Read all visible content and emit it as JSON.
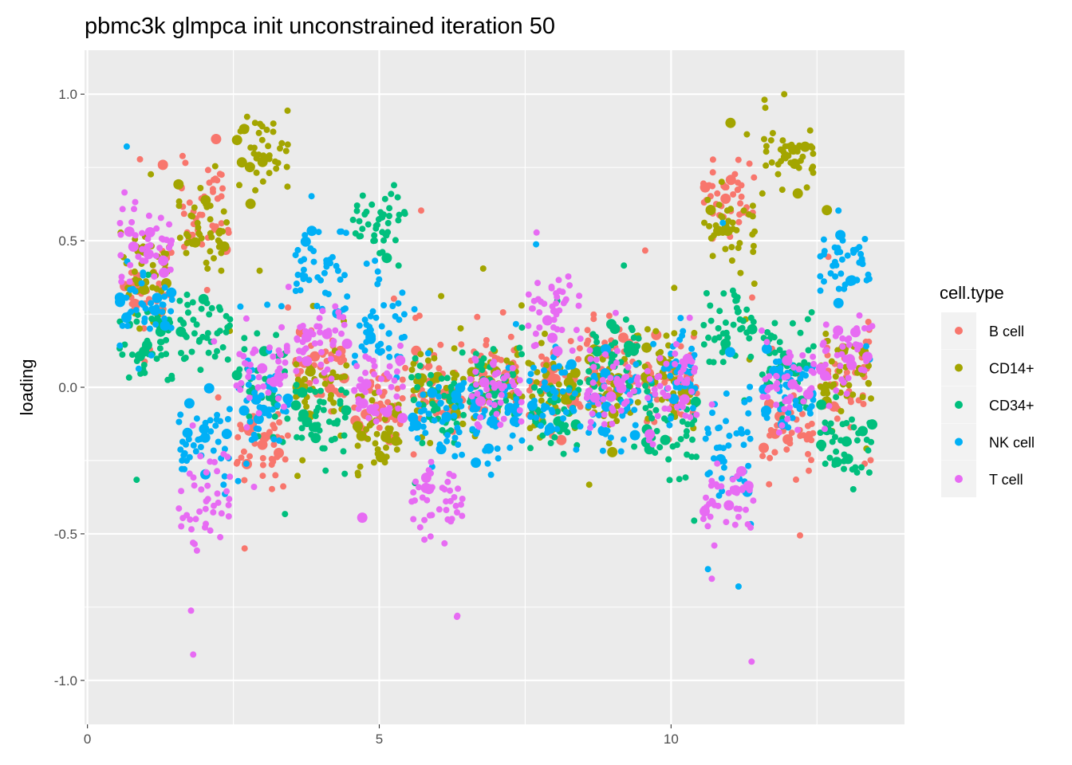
{
  "chart_data": {
    "type": "scatter",
    "title": "pbmc3k glmpca init unconstrained iteration 50",
    "xlabel": "",
    "ylabel": "loading",
    "xlim": [
      -0.05,
      14.0
    ],
    "ylim": [
      -1.15,
      1.15
    ],
    "x_ticks": [
      0,
      5,
      10
    ],
    "x_tick_labels": [
      "0",
      "5",
      "10"
    ],
    "y_ticks": [
      -1.0,
      -0.5,
      0.0,
      0.5,
      1.0
    ],
    "y_tick_labels": [
      "-1.0",
      "-0.5",
      "0.0",
      "0.5",
      "1.0"
    ],
    "grid": true,
    "legend": {
      "title": "cell.type",
      "position": "right",
      "entries": [
        {
          "name": "B cell",
          "color": "#F8766D"
        },
        {
          "name": "CD14+",
          "color": "#A3A500"
        },
        {
          "name": "CD34+",
          "color": "#00BF7D"
        },
        {
          "name": "NK cell",
          "color": "#00B0F6"
        },
        {
          "name": "T cell",
          "color": "#E76BF3"
        }
      ]
    },
    "colors": {
      "panel_background": "#EBEBEB",
      "grid": "#FFFFFF",
      "tick_text": "#4D4D4D"
    },
    "jitter_width": 0.45,
    "series": [
      {
        "name": "B cell",
        "values": [
          {
            "x": 1,
            "y": 0.35
          },
          {
            "x": 2,
            "y": 0.6
          },
          {
            "x": 3,
            "y": -0.2
          },
          {
            "x": 4,
            "y": 0.05
          },
          {
            "x": 5,
            "y": -0.05
          },
          {
            "x": 6,
            "y": 0.0
          },
          {
            "x": 7,
            "y": 0.05
          },
          {
            "x": 8,
            "y": 0.0
          },
          {
            "x": 9,
            "y": 0.1
          },
          {
            "x": 10,
            "y": 0.0
          },
          {
            "x": 11,
            "y": 0.65
          },
          {
            "x": 12,
            "y": -0.15
          },
          {
            "x": 13,
            "y": 0.05
          }
        ]
      },
      {
        "name": "CD14+",
        "values": [
          {
            "x": 1,
            "y": 0.4
          },
          {
            "x": 2,
            "y": 0.55
          },
          {
            "x": 3,
            "y": 0.8
          },
          {
            "x": 4,
            "y": 0.0
          },
          {
            "x": 5,
            "y": -0.15
          },
          {
            "x": 6,
            "y": 0.0
          },
          {
            "x": 7,
            "y": 0.0
          },
          {
            "x": 8,
            "y": 0.0
          },
          {
            "x": 9,
            "y": 0.0
          },
          {
            "x": 10,
            "y": 0.05
          },
          {
            "x": 11,
            "y": 0.55
          },
          {
            "x": 12,
            "y": 0.8
          },
          {
            "x": 13,
            "y": 0.0
          }
        ]
      },
      {
        "name": "CD34+",
        "values": [
          {
            "x": 1,
            "y": 0.15
          },
          {
            "x": 2,
            "y": 0.2
          },
          {
            "x": 3,
            "y": 0.0
          },
          {
            "x": 4,
            "y": -0.1
          },
          {
            "x": 5,
            "y": 0.55
          },
          {
            "x": 6,
            "y": -0.05
          },
          {
            "x": 7,
            "y": 0.0
          },
          {
            "x": 8,
            "y": -0.1
          },
          {
            "x": 9,
            "y": 0.1
          },
          {
            "x": 10,
            "y": -0.15
          },
          {
            "x": 11,
            "y": 0.2
          },
          {
            "x": 12,
            "y": 0.1
          },
          {
            "x": 13,
            "y": -0.2
          }
        ]
      },
      {
        "name": "NK cell",
        "values": [
          {
            "x": 1,
            "y": 0.25
          },
          {
            "x": 2,
            "y": -0.2
          },
          {
            "x": 3,
            "y": -0.05
          },
          {
            "x": 4,
            "y": 0.4
          },
          {
            "x": 5,
            "y": 0.2
          },
          {
            "x": 6,
            "y": -0.1
          },
          {
            "x": 7,
            "y": -0.1
          },
          {
            "x": 8,
            "y": -0.05
          },
          {
            "x": 9,
            "y": -0.05
          },
          {
            "x": 10,
            "y": 0.05
          },
          {
            "x": 11,
            "y": -0.2
          },
          {
            "x": 12,
            "y": 0.0
          },
          {
            "x": 13,
            "y": 0.4
          }
        ]
      },
      {
        "name": "T cell",
        "values": [
          {
            "x": 1,
            "y": 0.5
          },
          {
            "x": 2,
            "y": -0.4
          },
          {
            "x": 3,
            "y": 0.05
          },
          {
            "x": 4,
            "y": 0.15
          },
          {
            "x": 5,
            "y": 0.0
          },
          {
            "x": 6,
            "y": -0.4
          },
          {
            "x": 7,
            "y": 0.0
          },
          {
            "x": 8,
            "y": 0.25
          },
          {
            "x": 9,
            "y": 0.0
          },
          {
            "x": 10,
            "y": 0.0
          },
          {
            "x": 11,
            "y": -0.4
          },
          {
            "x": 12,
            "y": 0.0
          },
          {
            "x": 13,
            "y": 0.1
          }
        ]
      }
    ]
  }
}
